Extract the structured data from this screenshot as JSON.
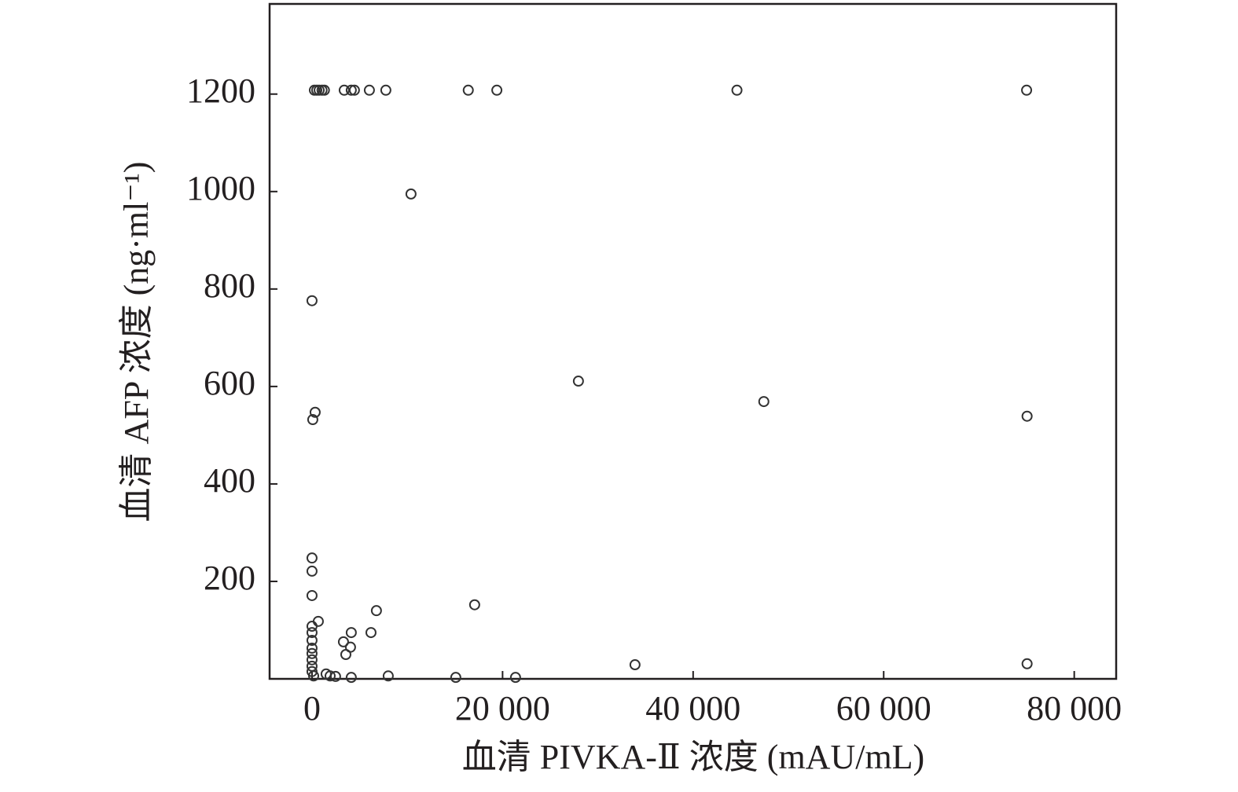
{
  "chart_data": {
    "type": "scatter",
    "x_label": "血清 PIVKA-Ⅱ 浓度 (mAU/mL)",
    "y_label": "血清 AFP 浓度 (ng·ml⁻¹)",
    "xlim": [
      -4450,
      84400
    ],
    "ylim": [
      0,
      1385
    ],
    "xticks": [
      0,
      {
        "value": 20000,
        "label": "20 000"
      },
      {
        "value": 40000,
        "label": "40 000"
      },
      {
        "value": 60000,
        "label": "60 000"
      },
      {
        "value": 80000,
        "label": "80 000"
      }
    ],
    "yticks": [
      200,
      400,
      600,
      800,
      1000,
      1200
    ],
    "color": "#333333",
    "x": [
      250,
      500,
      750,
      1050,
      1300,
      3380,
      4120,
      4450,
      6020,
      7750,
      16400,
      19400,
      44600,
      75000,
      10390,
      0,
      27960,
      47420,
      75050,
      330,
      80,
      0,
      0,
      0,
      660,
      0,
      0,
      0,
      0,
      0,
      0,
      0,
      0,
      170,
      6760,
      17070,
      6190,
      4120,
      4040,
      3300,
      3550,
      33900,
      75050,
      1480,
      1900,
      2470,
      4120,
      8000,
      15090,
      21360
    ],
    "values": [
      1208,
      1208,
      1208,
      1208,
      1208,
      1208,
      1208,
      1208,
      1208,
      1208,
      1208,
      1208,
      1208,
      1208,
      995,
      776,
      611,
      569,
      539,
      547,
      532,
      248,
      221,
      171,
      118,
      108,
      95,
      79,
      63,
      52,
      39,
      26,
      15,
      6,
      140,
      152,
      95,
      95,
      65,
      76,
      50,
      29,
      31,
      10,
      6,
      5,
      3,
      6,
      3,
      3
    ]
  }
}
